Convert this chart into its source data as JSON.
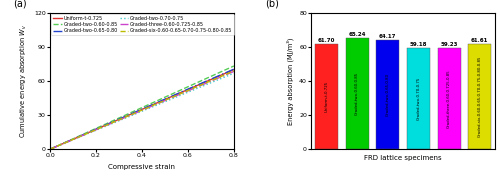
{
  "panel_a": {
    "xlabel": "Compressive strain",
    "ylabel": "Cumulative energy absorption $W_v$",
    "xlim": [
      0.0,
      0.8
    ],
    "ylim": [
      0,
      120
    ],
    "yticks": [
      0,
      30,
      60,
      90,
      120
    ],
    "xticks": [
      0.0,
      0.2,
      0.4,
      0.6,
      0.8
    ],
    "lines": [
      {
        "label": "Uniform-t-0.725",
        "color": "#e03030",
        "linestyle": "-",
        "linewidth": 1.0,
        "slope": 87.5
      },
      {
        "label": "Graded-two-0.60-0.85",
        "color": "#55cc55",
        "linestyle": "--",
        "linewidth": 1.0,
        "slope": 91.5
      },
      {
        "label": "Graded-two-0.65-0.80",
        "color": "#2244cc",
        "linestyle": "-.",
        "linewidth": 1.0,
        "slope": 88.0
      },
      {
        "label": "Graded-two-0.70-0.75",
        "color": "#44cccc",
        "linestyle": ":",
        "linewidth": 1.0,
        "slope": 83.5
      },
      {
        "label": "Graded-three-0.60-0.725-0.85",
        "color": "#cc44cc",
        "linestyle": "-.",
        "linewidth": 1.0,
        "slope": 85.5
      },
      {
        "label": "Graded-six-0.60-0.65-0.70-0.75-0.80-0.85",
        "color": "#bbbb00",
        "linestyle": "--",
        "linewidth": 1.0,
        "slope": 86.0
      }
    ]
  },
  "panel_b": {
    "xlabel": "FRD lattice specimens",
    "ylabel": "Energy absorption (MJ/m³)",
    "ylim": [
      0,
      80
    ],
    "yticks": [
      0,
      20,
      40,
      60,
      80
    ],
    "bars": [
      {
        "label": "Uniform-t-0.725",
        "value": 61.7,
        "color": "#ff2020"
      },
      {
        "label": "Graded-two-0.60-0.85",
        "value": 65.24,
        "color": "#00cc00"
      },
      {
        "label": "Graded-two-0.65-0.80",
        "value": 64.17,
        "color": "#0000ee"
      },
      {
        "label": "Graded-two-0.70-0.75",
        "value": 59.18,
        "color": "#00dddd"
      },
      {
        "label": "Graded-three-0.60-0.725-0.85",
        "value": 59.23,
        "color": "#ff00ff"
      },
      {
        "label": "Graded-six-0.60-0.65-0.70-0.75-0.80-0.85",
        "value": 61.61,
        "color": "#dddd00"
      }
    ]
  }
}
